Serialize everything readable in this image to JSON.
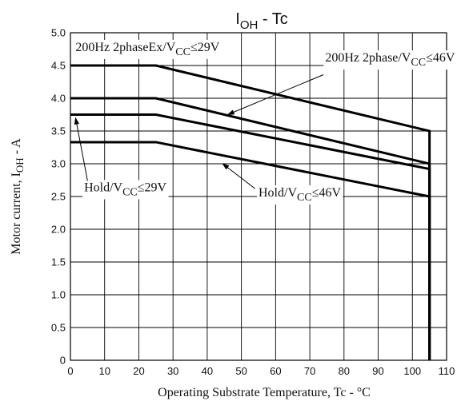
{
  "chart_data": {
    "type": "line",
    "title": {
      "main": "I",
      "sub": "OH",
      "rest": " - Tc"
    },
    "xlabel": "Operating Substrate Temperature, Tc - °C",
    "ylabel": {
      "pre": "Motor current, I",
      "sub": "OH",
      "post": " - A"
    },
    "xlim": [
      0,
      110
    ],
    "ylim": [
      0,
      5.0
    ],
    "x_ticks": [
      "0",
      "10",
      "20",
      "30",
      "40",
      "50",
      "60",
      "70",
      "80",
      "90",
      "100",
      "110"
    ],
    "y_ticks": [
      "0",
      "0.5",
      "1.0",
      "1.5",
      "2.0",
      "2.5",
      "3.0",
      "3.5",
      "4.0",
      "4.5",
      "5.0"
    ],
    "grid": true,
    "series": [
      {
        "points": [
          [
            0,
            4.5
          ],
          [
            25,
            4.5
          ],
          [
            105,
            3.5
          ],
          [
            105,
            0
          ]
        ]
      },
      {
        "points": [
          [
            0,
            4.0
          ],
          [
            25,
            4.0
          ],
          [
            105,
            3.0
          ],
          [
            105,
            0
          ]
        ]
      },
      {
        "points": [
          [
            0,
            3.75
          ],
          [
            25,
            3.75
          ],
          [
            105,
            2.92
          ],
          [
            105,
            0
          ]
        ]
      },
      {
        "points": [
          [
            0,
            3.33
          ],
          [
            25,
            3.33
          ],
          [
            105,
            2.5
          ],
          [
            105,
            0
          ]
        ]
      }
    ],
    "annotations": [
      {
        "pre": "200Hz 2phaseEx/V",
        "sub": "CC",
        "post": "≤29V",
        "x": 1.5,
        "y": 4.72,
        "anchor": "start"
      },
      {
        "pre": "200Hz 2phase/V",
        "sub": "CC",
        "post": "≤46V",
        "x": 74.5,
        "y": 4.56,
        "anchor": "start"
      },
      {
        "pre": "Hold/V",
        "sub": "CC",
        "post": "≤29V",
        "x": 4,
        "y": 2.58,
        "anchor": "start"
      },
      {
        "pre": "Hold/V",
        "sub": "CC",
        "post": "≤46V",
        "x": 55,
        "y": 2.5,
        "anchor": "start"
      }
    ],
    "arrows": [
      {
        "from": [
          74,
          4.36
        ],
        "to": [
          46,
          3.75
        ]
      },
      {
        "from": [
          5,
          2.74
        ],
        "to": [
          1.5,
          3.7
        ]
      },
      {
        "from": [
          54,
          2.62
        ],
        "to": [
          44.5,
          3.0
        ]
      }
    ]
  }
}
